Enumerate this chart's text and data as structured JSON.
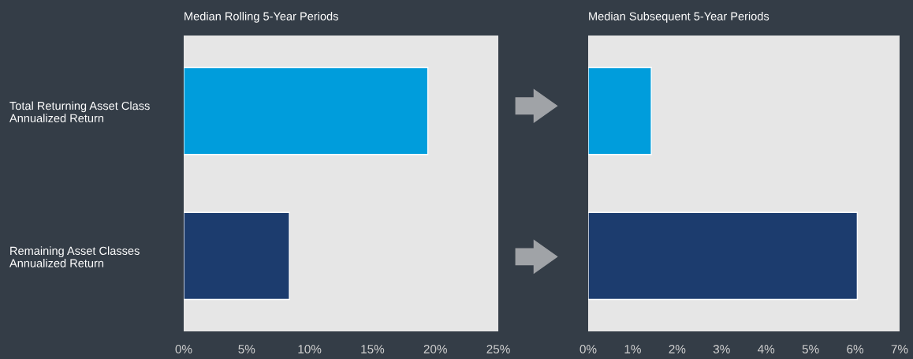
{
  "chart_data": [
    {
      "type": "bar",
      "orientation": "horizontal",
      "title": "Median Rolling 5-Year Periods",
      "categories": [
        "Total Returning Asset Class\nAnnualized Return",
        "Remaining Asset Classes\nAnnualized Return"
      ],
      "values": [
        19.4,
        8.4
      ],
      "colors": [
        "#009ddc",
        "#1c3c6e"
      ],
      "xlim": [
        0,
        25
      ],
      "xticks": [
        {
          "value": 0,
          "label": "0%"
        },
        {
          "value": 5,
          "label": "5%"
        },
        {
          "value": 10,
          "label": "10%"
        },
        {
          "value": 15,
          "label": "15%"
        },
        {
          "value": 20,
          "label": "20%"
        },
        {
          "value": 25,
          "label": "25%"
        }
      ],
      "grid": false
    },
    {
      "type": "bar",
      "orientation": "horizontal",
      "title": "Median Subsequent 5-Year Periods",
      "categories": [
        null,
        null
      ],
      "values": [
        1.42,
        6.05
      ],
      "colors": [
        "#009ddc",
        "#1c3c6e"
      ],
      "xlim": [
        0,
        7
      ],
      "xticks": [
        {
          "value": 0,
          "label": "0%"
        },
        {
          "value": 1,
          "label": "1%"
        },
        {
          "value": 2,
          "label": "2%"
        },
        {
          "value": 3,
          "label": "3%"
        },
        {
          "value": 4,
          "label": "4%"
        },
        {
          "value": 5,
          "label": "5%"
        },
        {
          "value": 6,
          "label": "6%"
        },
        {
          "value": 7,
          "label": "7%"
        }
      ],
      "grid": false,
      "tick_labels": "x"
    }
  ]
}
